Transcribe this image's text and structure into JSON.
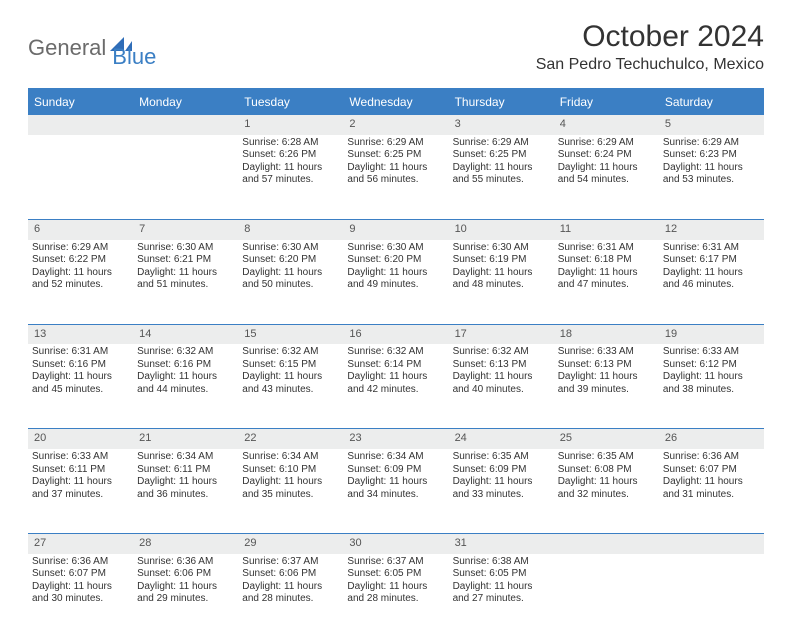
{
  "brand": {
    "part1": "General",
    "part2": "Blue"
  },
  "title": "October 2024",
  "location": "San Pedro Techuchulco, Mexico",
  "colors": {
    "accent": "#3b7fc4",
    "header_bg": "#3b7fc4",
    "header_text": "#ffffff",
    "daynum_bg": "#eceded",
    "text": "#333333",
    "background": "#ffffff"
  },
  "typography": {
    "title_fontsize": 30,
    "location_fontsize": 16,
    "dayheader_fontsize": 12,
    "daynum_fontsize": 11,
    "cell_fontsize": 10
  },
  "layout": {
    "columns": 7,
    "rows": 5,
    "first_weekday": "Sunday"
  },
  "weekdays": [
    "Sunday",
    "Monday",
    "Tuesday",
    "Wednesday",
    "Thursday",
    "Friday",
    "Saturday"
  ],
  "weeks": [
    [
      {
        "day": "",
        "sunrise": "",
        "sunset": "",
        "daylight": ""
      },
      {
        "day": "",
        "sunrise": "",
        "sunset": "",
        "daylight": ""
      },
      {
        "day": "1",
        "sunrise": "Sunrise: 6:28 AM",
        "sunset": "Sunset: 6:26 PM",
        "daylight": "Daylight: 11 hours and 57 minutes."
      },
      {
        "day": "2",
        "sunrise": "Sunrise: 6:29 AM",
        "sunset": "Sunset: 6:25 PM",
        "daylight": "Daylight: 11 hours and 56 minutes."
      },
      {
        "day": "3",
        "sunrise": "Sunrise: 6:29 AM",
        "sunset": "Sunset: 6:25 PM",
        "daylight": "Daylight: 11 hours and 55 minutes."
      },
      {
        "day": "4",
        "sunrise": "Sunrise: 6:29 AM",
        "sunset": "Sunset: 6:24 PM",
        "daylight": "Daylight: 11 hours and 54 minutes."
      },
      {
        "day": "5",
        "sunrise": "Sunrise: 6:29 AM",
        "sunset": "Sunset: 6:23 PM",
        "daylight": "Daylight: 11 hours and 53 minutes."
      }
    ],
    [
      {
        "day": "6",
        "sunrise": "Sunrise: 6:29 AM",
        "sunset": "Sunset: 6:22 PM",
        "daylight": "Daylight: 11 hours and 52 minutes."
      },
      {
        "day": "7",
        "sunrise": "Sunrise: 6:30 AM",
        "sunset": "Sunset: 6:21 PM",
        "daylight": "Daylight: 11 hours and 51 minutes."
      },
      {
        "day": "8",
        "sunrise": "Sunrise: 6:30 AM",
        "sunset": "Sunset: 6:20 PM",
        "daylight": "Daylight: 11 hours and 50 minutes."
      },
      {
        "day": "9",
        "sunrise": "Sunrise: 6:30 AM",
        "sunset": "Sunset: 6:20 PM",
        "daylight": "Daylight: 11 hours and 49 minutes."
      },
      {
        "day": "10",
        "sunrise": "Sunrise: 6:30 AM",
        "sunset": "Sunset: 6:19 PM",
        "daylight": "Daylight: 11 hours and 48 minutes."
      },
      {
        "day": "11",
        "sunrise": "Sunrise: 6:31 AM",
        "sunset": "Sunset: 6:18 PM",
        "daylight": "Daylight: 11 hours and 47 minutes."
      },
      {
        "day": "12",
        "sunrise": "Sunrise: 6:31 AM",
        "sunset": "Sunset: 6:17 PM",
        "daylight": "Daylight: 11 hours and 46 minutes."
      }
    ],
    [
      {
        "day": "13",
        "sunrise": "Sunrise: 6:31 AM",
        "sunset": "Sunset: 6:16 PM",
        "daylight": "Daylight: 11 hours and 45 minutes."
      },
      {
        "day": "14",
        "sunrise": "Sunrise: 6:32 AM",
        "sunset": "Sunset: 6:16 PM",
        "daylight": "Daylight: 11 hours and 44 minutes."
      },
      {
        "day": "15",
        "sunrise": "Sunrise: 6:32 AM",
        "sunset": "Sunset: 6:15 PM",
        "daylight": "Daylight: 11 hours and 43 minutes."
      },
      {
        "day": "16",
        "sunrise": "Sunrise: 6:32 AM",
        "sunset": "Sunset: 6:14 PM",
        "daylight": "Daylight: 11 hours and 42 minutes."
      },
      {
        "day": "17",
        "sunrise": "Sunrise: 6:32 AM",
        "sunset": "Sunset: 6:13 PM",
        "daylight": "Daylight: 11 hours and 40 minutes."
      },
      {
        "day": "18",
        "sunrise": "Sunrise: 6:33 AM",
        "sunset": "Sunset: 6:13 PM",
        "daylight": "Daylight: 11 hours and 39 minutes."
      },
      {
        "day": "19",
        "sunrise": "Sunrise: 6:33 AM",
        "sunset": "Sunset: 6:12 PM",
        "daylight": "Daylight: 11 hours and 38 minutes."
      }
    ],
    [
      {
        "day": "20",
        "sunrise": "Sunrise: 6:33 AM",
        "sunset": "Sunset: 6:11 PM",
        "daylight": "Daylight: 11 hours and 37 minutes."
      },
      {
        "day": "21",
        "sunrise": "Sunrise: 6:34 AM",
        "sunset": "Sunset: 6:11 PM",
        "daylight": "Daylight: 11 hours and 36 minutes."
      },
      {
        "day": "22",
        "sunrise": "Sunrise: 6:34 AM",
        "sunset": "Sunset: 6:10 PM",
        "daylight": "Daylight: 11 hours and 35 minutes."
      },
      {
        "day": "23",
        "sunrise": "Sunrise: 6:34 AM",
        "sunset": "Sunset: 6:09 PM",
        "daylight": "Daylight: 11 hours and 34 minutes."
      },
      {
        "day": "24",
        "sunrise": "Sunrise: 6:35 AM",
        "sunset": "Sunset: 6:09 PM",
        "daylight": "Daylight: 11 hours and 33 minutes."
      },
      {
        "day": "25",
        "sunrise": "Sunrise: 6:35 AM",
        "sunset": "Sunset: 6:08 PM",
        "daylight": "Daylight: 11 hours and 32 minutes."
      },
      {
        "day": "26",
        "sunrise": "Sunrise: 6:36 AM",
        "sunset": "Sunset: 6:07 PM",
        "daylight": "Daylight: 11 hours and 31 minutes."
      }
    ],
    [
      {
        "day": "27",
        "sunrise": "Sunrise: 6:36 AM",
        "sunset": "Sunset: 6:07 PM",
        "daylight": "Daylight: 11 hours and 30 minutes."
      },
      {
        "day": "28",
        "sunrise": "Sunrise: 6:36 AM",
        "sunset": "Sunset: 6:06 PM",
        "daylight": "Daylight: 11 hours and 29 minutes."
      },
      {
        "day": "29",
        "sunrise": "Sunrise: 6:37 AM",
        "sunset": "Sunset: 6:06 PM",
        "daylight": "Daylight: 11 hours and 28 minutes."
      },
      {
        "day": "30",
        "sunrise": "Sunrise: 6:37 AM",
        "sunset": "Sunset: 6:05 PM",
        "daylight": "Daylight: 11 hours and 28 minutes."
      },
      {
        "day": "31",
        "sunrise": "Sunrise: 6:38 AM",
        "sunset": "Sunset: 6:05 PM",
        "daylight": "Daylight: 11 hours and 27 minutes."
      },
      {
        "day": "",
        "sunrise": "",
        "sunset": "",
        "daylight": ""
      },
      {
        "day": "",
        "sunrise": "",
        "sunset": "",
        "daylight": ""
      }
    ]
  ]
}
